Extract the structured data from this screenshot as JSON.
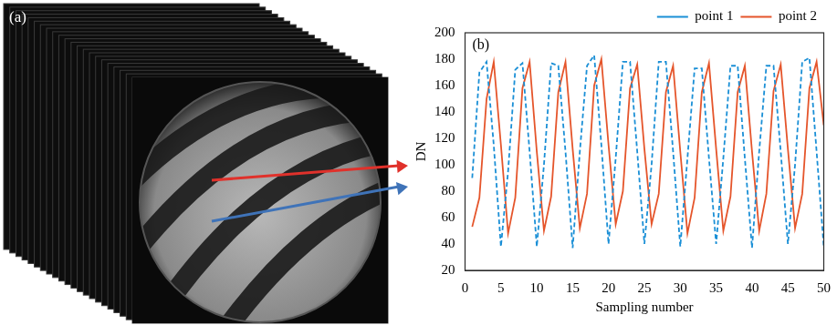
{
  "image_panel": {
    "label": "(a)"
  },
  "chart_data": {
    "type": "line",
    "panel_label": "(b)",
    "x_label": "Sampling number",
    "y_label": "DN",
    "x": [
      1,
      2,
      3,
      4,
      5,
      6,
      7,
      8,
      9,
      10,
      11,
      12,
      13,
      14,
      15,
      16,
      17,
      18,
      19,
      20,
      21,
      22,
      23,
      24,
      25,
      26,
      27,
      28,
      29,
      30,
      31,
      32,
      33,
      34,
      35,
      36,
      37,
      38,
      39,
      40,
      41,
      42,
      43,
      44,
      45,
      46,
      47,
      48,
      49,
      50
    ],
    "series": [
      {
        "name": "point 1",
        "color": "#1a8fd6",
        "line_style": "dashed",
        "values": [
          90,
          170,
          178,
          115,
          38,
          95,
          172,
          177,
          110,
          38,
          100,
          177,
          175,
          110,
          37,
          110,
          175,
          183,
          115,
          40,
          105,
          178,
          178,
          110,
          40,
          100,
          178,
          178,
          110,
          38,
          105,
          173,
          173,
          105,
          40,
          105,
          175,
          175,
          105,
          37,
          110,
          175,
          175,
          110,
          40,
          100,
          178,
          181,
          110,
          38
        ]
      },
      {
        "name": "point 2",
        "color": "#e5552b",
        "line_style": "solid",
        "values": [
          53,
          75,
          150,
          178,
          115,
          48,
          75,
          158,
          178,
          110,
          50,
          76,
          155,
          178,
          112,
          52,
          78,
          160,
          180,
          115,
          55,
          80,
          158,
          176,
          112,
          55,
          78,
          155,
          175,
          110,
          48,
          75,
          155,
          177,
          112,
          50,
          76,
          155,
          175,
          110,
          50,
          78,
          156,
          176,
          112,
          52,
          78,
          158,
          178,
          130
        ]
      }
    ],
    "xlim": [
      0,
      50
    ],
    "xticks": [
      0,
      5,
      10,
      15,
      20,
      25,
      30,
      35,
      40,
      45,
      50
    ],
    "ylim": [
      20,
      200
    ],
    "yticks": [
      20,
      40,
      60,
      80,
      100,
      120,
      140,
      160,
      180,
      200
    ],
    "grid": false,
    "legend": "top-right"
  }
}
